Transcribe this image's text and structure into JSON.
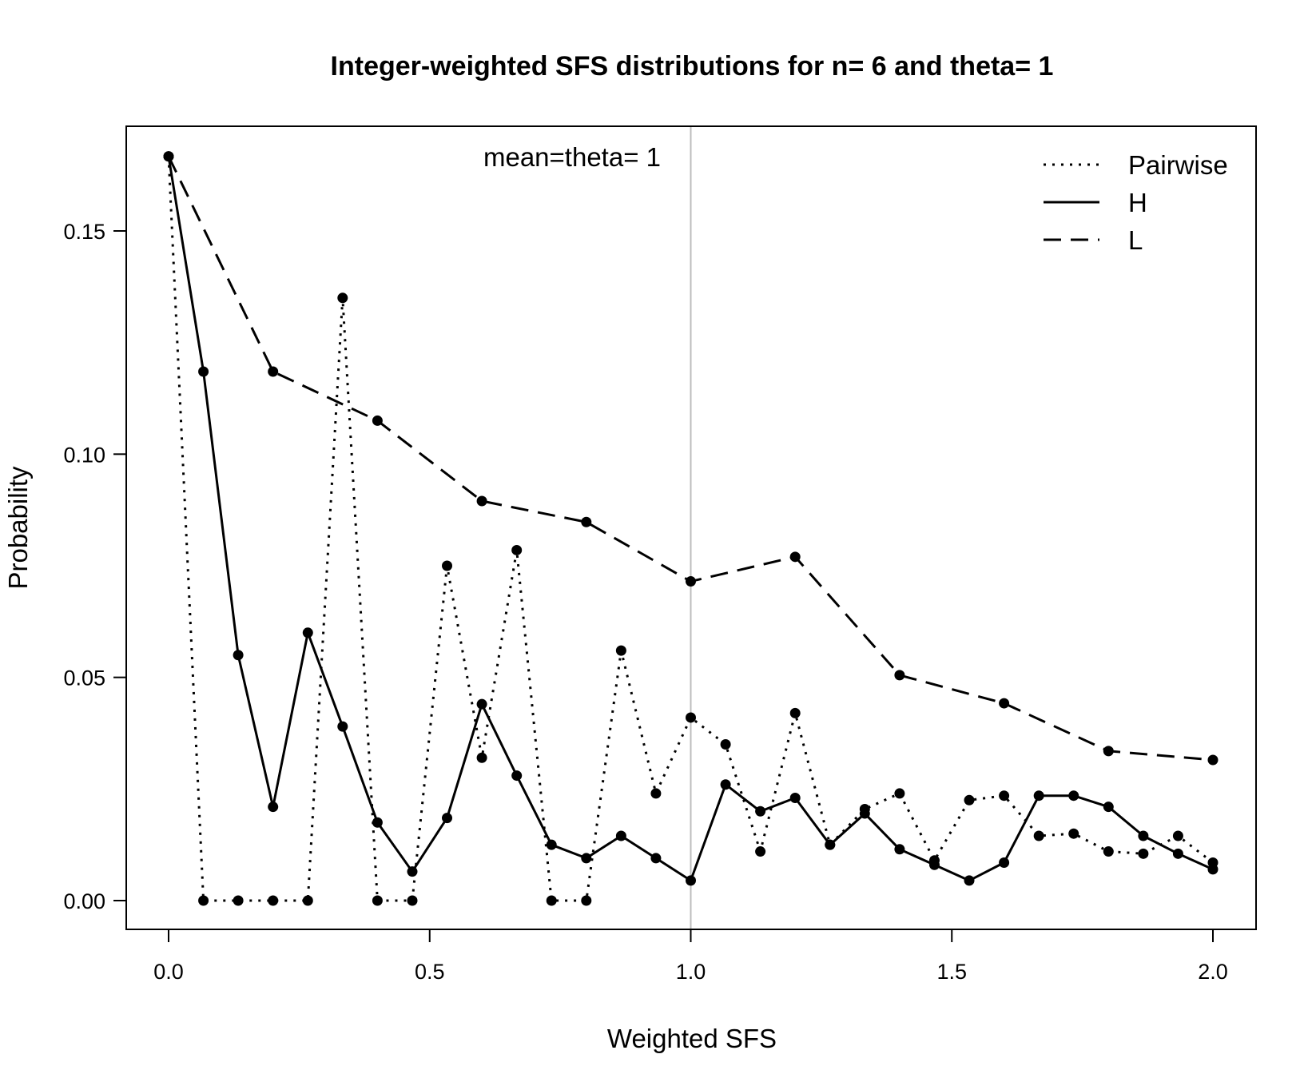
{
  "chart_data": {
    "type": "line",
    "title": "Integer-weighted SFS distributions for n= 6 and theta= 1",
    "xlabel": "Weighted SFS",
    "ylabel": "Probability",
    "xlim": [
      0,
      2
    ],
    "ylim": [
      -0.0065,
      0.173
    ],
    "xticks": [
      0,
      0.5,
      1,
      1.5,
      2
    ],
    "xtick_labels": [
      "0.0",
      "0.5",
      "1.0",
      "1.5",
      "2.0"
    ],
    "yticks": [
      0,
      0.05,
      0.1,
      0.15
    ],
    "ytick_labels": [
      "0.00",
      "0.05",
      "0.10",
      "0.15"
    ],
    "vline": 1.0,
    "annotation": "mean=theta= 1",
    "legend_position": "top-right",
    "grid": false,
    "series": [
      {
        "name": "Pairwise",
        "style": "dotted",
        "x": [
          0,
          0.0667,
          0.1333,
          0.2,
          0.2667,
          0.3333,
          0.4,
          0.4667,
          0.5333,
          0.6,
          0.6667,
          0.7333,
          0.8,
          0.8667,
          0.9333,
          1.0,
          1.0667,
          1.1333,
          1.2,
          1.2667,
          1.3333,
          1.4,
          1.4667,
          1.5333,
          1.6,
          1.6667,
          1.7333,
          1.8,
          1.8667,
          1.9333,
          2.0
        ],
        "y": [
          0.1667,
          0,
          0,
          0,
          0,
          0.135,
          0,
          0,
          0.075,
          0.032,
          0.0785,
          0,
          0,
          0.056,
          0.024,
          0.041,
          0.035,
          0.011,
          0.042,
          0.0125,
          0.0205,
          0.024,
          0.009,
          0.0225,
          0.0235,
          0.0145,
          0.015,
          0.011,
          0.0105,
          0.0145,
          0.0085
        ]
      },
      {
        "name": "H",
        "style": "solid",
        "x": [
          0,
          0.0667,
          0.1333,
          0.2,
          0.2667,
          0.3333,
          0.4,
          0.4667,
          0.5333,
          0.6,
          0.6667,
          0.7333,
          0.8,
          0.8667,
          0.9333,
          1.0,
          1.0667,
          1.1333,
          1.2,
          1.2667,
          1.3333,
          1.4,
          1.4667,
          1.5333,
          1.6,
          1.6667,
          1.7333,
          1.8,
          1.8667,
          1.9333,
          2.0
        ],
        "y": [
          0.1667,
          0.1185,
          0.055,
          0.021,
          0.06,
          0.039,
          0.0175,
          0.0065,
          0.0185,
          0.044,
          0.028,
          0.0125,
          0.0095,
          0.0145,
          0.0095,
          0.0045,
          0.026,
          0.02,
          0.023,
          0.0125,
          0.0195,
          0.0115,
          0.008,
          0.0045,
          0.0085,
          0.0235,
          0.0235,
          0.021,
          0.0145,
          0.0105,
          0.007
        ]
      },
      {
        "name": "L",
        "style": "dashed",
        "x": [
          0,
          0.2,
          0.4,
          0.6,
          0.8,
          1.0,
          1.2,
          1.4,
          1.6,
          1.8,
          2.0
        ],
        "y": [
          0.1667,
          0.1185,
          0.1075,
          0.0895,
          0.0848,
          0.0715,
          0.077,
          0.0505,
          0.0442,
          0.0335,
          0.0315
        ]
      }
    ]
  }
}
